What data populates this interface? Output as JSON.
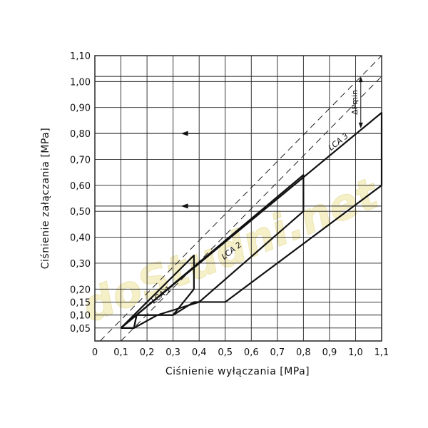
{
  "watermark": "doStudni.net",
  "chart_data": {
    "type": "line",
    "xlabel": "Ciśnienie wyłączania [MPa]",
    "ylabel": "Ciśnienie załączania [MPa]",
    "xlim": [
      0,
      1.1
    ],
    "ylim": [
      0,
      1.1
    ],
    "x_ticks": [
      {
        "v": 0,
        "label": "0"
      },
      {
        "v": 0.1,
        "label": "0,1"
      },
      {
        "v": 0.2,
        "label": "0,2"
      },
      {
        "v": 0.3,
        "label": "0,3"
      },
      {
        "v": 0.4,
        "label": "0,4"
      },
      {
        "v": 0.5,
        "label": "0,5"
      },
      {
        "v": 0.6,
        "label": "0,6"
      },
      {
        "v": 0.7,
        "label": "0,7"
      },
      {
        "v": 0.8,
        "label": "0,8"
      },
      {
        "v": 0.9,
        "label": "0,9"
      },
      {
        "v": 1.0,
        "label": "1,0"
      },
      {
        "v": 1.1,
        "label": "1,1"
      }
    ],
    "y_ticks": [
      {
        "v": 0.05,
        "label": "0,05"
      },
      {
        "v": 0.1,
        "label": "0,10"
      },
      {
        "v": 0.15,
        "label": "0,15"
      },
      {
        "v": 0.2,
        "label": "0,20"
      },
      {
        "v": 0.3,
        "label": "0,30"
      },
      {
        "v": 0.4,
        "label": "0,40"
      },
      {
        "v": 0.5,
        "label": "0,50"
      },
      {
        "v": 0.6,
        "label": "0,60"
      },
      {
        "v": 0.7,
        "label": "0,70"
      },
      {
        "v": 0.8,
        "label": "0,80"
      },
      {
        "v": 0.9,
        "label": "0,90"
      },
      {
        "v": 1.0,
        "label": "1,00"
      },
      {
        "v": 1.1,
        "label": "1,10"
      }
    ],
    "grid": true,
    "series": [
      {
        "name": "LCA 1",
        "label_pos": [
          0.26,
          0.17
        ],
        "label_angle": 38,
        "points": [
          [
            0.1,
            0.05
          ],
          [
            0.38,
            0.33
          ],
          [
            0.38,
            0.2
          ],
          [
            0.3,
            0.1
          ],
          [
            0.16,
            0.1
          ],
          [
            0.15,
            0.05
          ],
          [
            0.1,
            0.05
          ]
        ]
      },
      {
        "name": "LCA 2",
        "label_pos": [
          0.53,
          0.34
        ],
        "label_angle": 38,
        "points": [
          [
            0.1,
            0.05
          ],
          [
            0.8,
            0.64
          ],
          [
            0.8,
            0.5
          ],
          [
            0.4,
            0.15
          ],
          [
            0.24,
            0.1
          ],
          [
            0.15,
            0.05
          ],
          [
            0.1,
            0.05
          ]
        ]
      },
      {
        "name": "LCA 3",
        "label_pos": [
          0.94,
          0.76
        ],
        "label_angle": 38,
        "points": [
          [
            0.1,
            0.05
          ],
          [
            1.1,
            0.88
          ],
          [
            1.1,
            0.6
          ],
          [
            0.5,
            0.15
          ],
          [
            0.38,
            0.15
          ],
          [
            0.3,
            0.1
          ],
          [
            0.16,
            0.1
          ],
          [
            0.15,
            0.05
          ],
          [
            0.1,
            0.05
          ]
        ]
      }
    ],
    "reference_lines": [
      {
        "style": "dashed",
        "points": [
          [
            0.02,
            0.0
          ],
          [
            1.1,
            1.1
          ]
        ]
      },
      {
        "style": "dashed",
        "points": [
          [
            0.1,
            0.0
          ],
          [
            1.1,
            1.02
          ]
        ]
      }
    ],
    "annotation_lines": [
      {
        "y": 1.02
      },
      {
        "y": 0.8
      },
      {
        "y": 0.52
      }
    ],
    "arrows": [
      {
        "from": [
          0.4,
          0.8
        ],
        "to": [
          0.33,
          0.8
        ]
      },
      {
        "from": [
          0.4,
          0.52
        ],
        "to": [
          0.33,
          0.52
        ]
      }
    ],
    "delta": {
      "label": "ΔPmin",
      "x": 1.02,
      "y_top": 1.02,
      "y_bottom": 0.82
    }
  }
}
